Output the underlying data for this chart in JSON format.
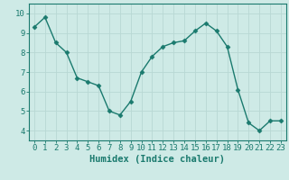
{
  "x": [
    0,
    1,
    2,
    3,
    4,
    5,
    6,
    7,
    8,
    9,
    10,
    11,
    12,
    13,
    14,
    15,
    16,
    17,
    18,
    19,
    20,
    21,
    22,
    23
  ],
  "y": [
    9.3,
    9.8,
    8.5,
    8.0,
    6.7,
    6.5,
    6.3,
    5.0,
    4.8,
    5.5,
    7.0,
    7.8,
    8.3,
    8.5,
    8.6,
    9.1,
    9.5,
    9.1,
    8.3,
    6.1,
    4.4,
    4.0,
    4.5,
    4.5
  ],
  "xlabel": "Humidex (Indice chaleur)",
  "ylim": [
    3.5,
    10.5
  ],
  "xlim": [
    -0.5,
    23.5
  ],
  "yticks": [
    4,
    5,
    6,
    7,
    8,
    9,
    10
  ],
  "xticks": [
    0,
    1,
    2,
    3,
    4,
    5,
    6,
    7,
    8,
    9,
    10,
    11,
    12,
    13,
    14,
    15,
    16,
    17,
    18,
    19,
    20,
    21,
    22,
    23
  ],
  "line_color": "#1a7a6e",
  "marker_color": "#1a7a6e",
  "bg_color": "#ceeae6",
  "grid_color": "#b8d8d4",
  "axis_color": "#1a7a6e",
  "tick_color": "#1a7a6e",
  "label_color": "#1a7a6e",
  "xlabel_fontsize": 7.5,
  "tick_fontsize": 6.5
}
